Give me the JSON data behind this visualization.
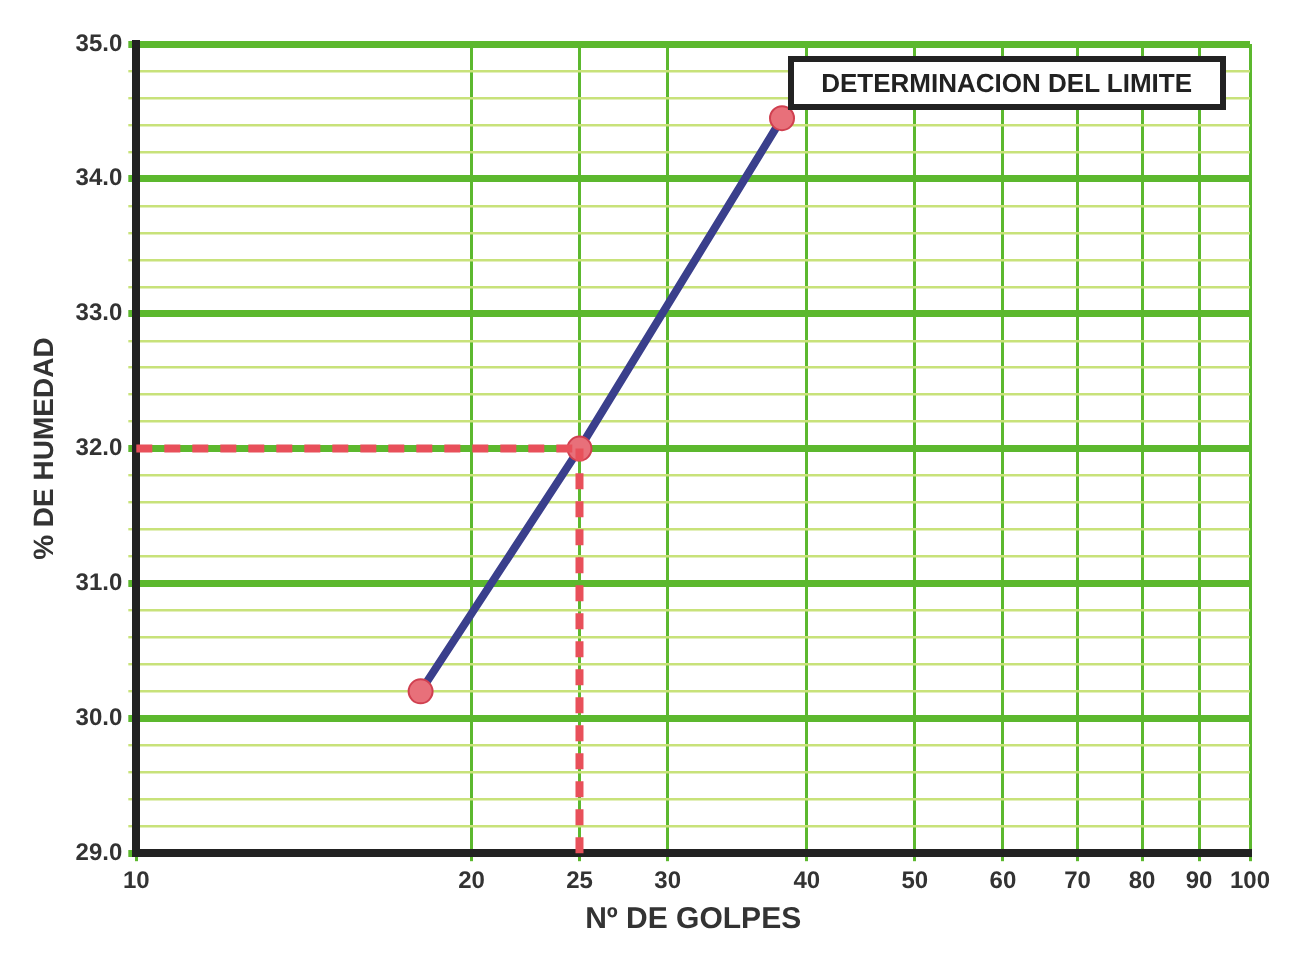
{
  "chart_data": {
    "type": "line",
    "title": "DETERMINACION DEL LIMITE",
    "xlabel": "Nº DE GOLPES",
    "ylabel": "% DE HUMEDAD",
    "log": "x",
    "grid": true,
    "marker": "circle",
    "line_style": "solid",
    "xlim": [
      10,
      100
    ],
    "xticks": [
      10,
      20,
      25,
      30,
      40,
      50,
      60,
      70,
      80,
      90,
      100
    ],
    "ylim": [
      29,
      35
    ],
    "yticks": [
      {
        "value": 29,
        "label": "29.0"
      },
      {
        "value": 29.2,
        "label": null
      },
      {
        "value": 29.4,
        "label": null
      },
      {
        "value": 29.6,
        "label": null
      },
      {
        "value": 29.8,
        "label": null
      },
      {
        "value": 30,
        "label": "30.0"
      },
      {
        "value": 30.2,
        "label": null
      },
      {
        "value": 30.4,
        "label": null
      },
      {
        "value": 30.6,
        "label": null
      },
      {
        "value": 30.8,
        "label": null
      },
      {
        "value": 31,
        "label": "31.0"
      },
      {
        "value": 31.2,
        "label": null
      },
      {
        "value": 31.4,
        "label": null
      },
      {
        "value": 31.6,
        "label": null
      },
      {
        "value": 31.8,
        "label": null
      },
      {
        "value": 32,
        "label": "32.0"
      },
      {
        "value": 32.2,
        "label": null
      },
      {
        "value": 32.4,
        "label": null
      },
      {
        "value": 32.6,
        "label": null
      },
      {
        "value": 32.8,
        "label": null
      },
      {
        "value": 33,
        "label": "33.0"
      },
      {
        "value": 33.2,
        "label": null
      },
      {
        "value": 33.4,
        "label": null
      },
      {
        "value": 33.6,
        "label": null
      },
      {
        "value": 33.8,
        "label": null
      },
      {
        "value": 34,
        "label": "34.0"
      },
      {
        "value": 34.2,
        "label": null
      },
      {
        "value": 34.4,
        "label": null
      },
      {
        "value": 34.6,
        "label": null
      },
      {
        "value": 34.8,
        "label": null
      },
      {
        "value": 35,
        "label": "35.0"
      }
    ],
    "x": [
      18,
      25,
      38
    ],
    "series": [
      {
        "color": "#3a3f8c",
        "values": [
          30.2,
          32.0,
          34.45
        ]
      }
    ],
    "ref_lines": [
      {
        "axis": "y",
        "value": 32,
        "color": "#e8505a",
        "line_style": "dashed"
      },
      {
        "axis": "x",
        "value": 25,
        "color": "#e8505a",
        "line_style": "dashed"
      }
    ],
    "legend": false
  }
}
